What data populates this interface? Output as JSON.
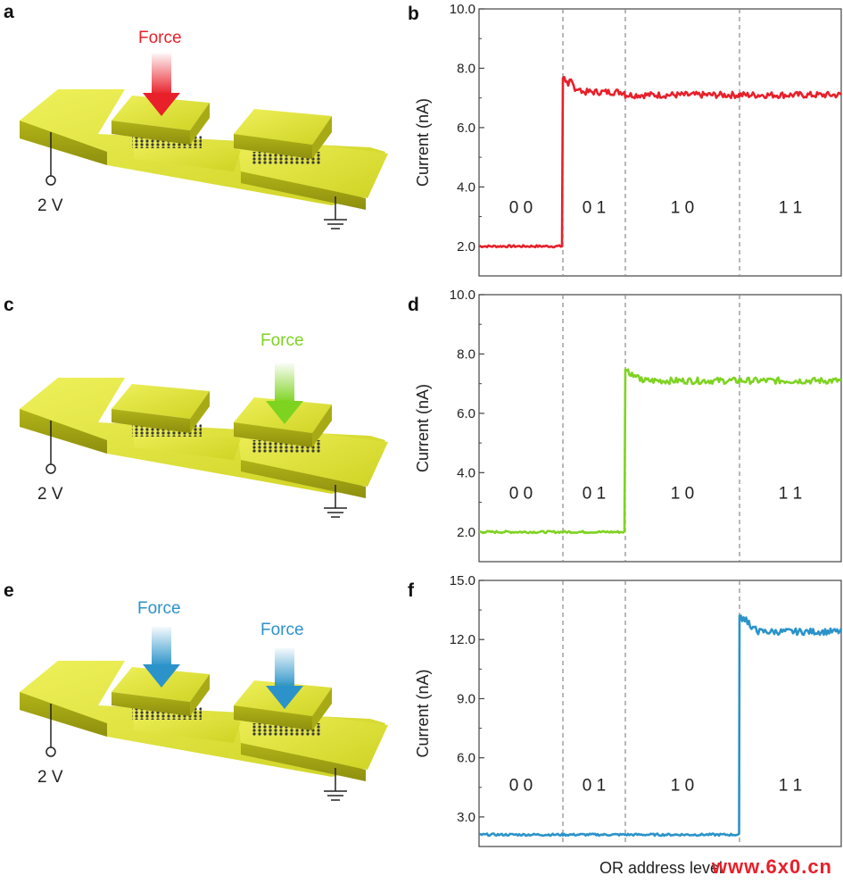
{
  "panels": {
    "a": "a",
    "b": "b",
    "c": "c",
    "d": "d",
    "e": "e",
    "f": "f"
  },
  "schematics": [
    {
      "force_labels": [
        "Force"
      ],
      "voltage": "2 V",
      "arrow_color": "#e8202a"
    },
    {
      "force_labels": [
        "Force"
      ],
      "voltage": "2 V",
      "arrow_color": "#7ed321"
    },
    {
      "force_labels": [
        "Force",
        "Force"
      ],
      "voltage": "2 V",
      "arrow_color": "#2b93c9"
    }
  ],
  "x_axis_label": "OR address level",
  "watermark": "www.6x0.cn",
  "chart_data": [
    {
      "type": "line",
      "ylabel": "Current (nA)",
      "ylim": [
        1,
        10
      ],
      "yticks": [
        "2.0",
        "4.0",
        "6.0",
        "8.0",
        "10.0"
      ],
      "ytick_values": [
        2,
        4,
        6,
        8,
        10
      ],
      "color": "#e8202a",
      "segments": [
        "0 0",
        "0 1",
        "1 0",
        "1 1"
      ],
      "series": [
        {
          "levels": [
            2.0,
            7.2,
            7.1,
            7.1
          ],
          "spike": 7.8,
          "step_after_segment": 0
        }
      ]
    },
    {
      "type": "line",
      "ylabel": "Current (nA)",
      "ylim": [
        1,
        10
      ],
      "yticks": [
        "2.0",
        "4.0",
        "6.0",
        "8.0",
        "10.0"
      ],
      "ytick_values": [
        2,
        4,
        6,
        8,
        10
      ],
      "color": "#7ed321",
      "segments": [
        "0 0",
        "0 1",
        "1 0",
        "1 1"
      ],
      "series": [
        {
          "levels": [
            2.0,
            2.0,
            7.1,
            7.1
          ],
          "spike": 7.6,
          "step_after_segment": 1
        }
      ]
    },
    {
      "type": "line",
      "ylabel": "Current (nA)",
      "ylim": [
        1.5,
        15
      ],
      "yticks": [
        "3.0",
        "6.0",
        "9.0",
        "12.0",
        "15.0"
      ],
      "ytick_values": [
        3,
        6,
        9,
        12,
        15
      ],
      "color": "#2b93c9",
      "segments": [
        "0 0",
        "0 1",
        "1 0",
        "1 1"
      ],
      "series": [
        {
          "levels": [
            2.1,
            2.1,
            2.1,
            12.4
          ],
          "spike": 13.5,
          "step_after_segment": 2
        }
      ]
    }
  ]
}
